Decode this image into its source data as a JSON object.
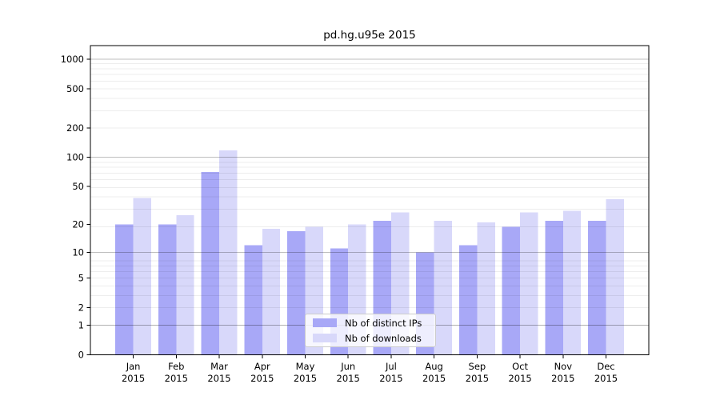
{
  "chart_data": {
    "type": "bar",
    "title": "pd.hg.u95e 2015",
    "categories": [
      "Jan 2015",
      "Feb 2015",
      "Mar 2015",
      "Apr 2015",
      "May 2015",
      "Jun 2015",
      "Jul 2015",
      "Aug 2015",
      "Sep 2015",
      "Oct 2015",
      "Nov 2015",
      "Dec 2015"
    ],
    "x_months": [
      "Jan",
      "Feb",
      "Mar",
      "Apr",
      "May",
      "Jun",
      "Jul",
      "Aug",
      "Sep",
      "Oct",
      "Nov",
      "Dec"
    ],
    "x_year": "2015",
    "series": [
      {
        "name": "Nb of distinct IPs",
        "color": "#a8a8f7",
        "values": [
          20,
          20,
          71,
          12,
          17,
          11,
          22,
          10,
          12,
          19,
          22,
          22
        ]
      },
      {
        "name": "Nb of downloads",
        "color": "#d8d8fa",
        "values": [
          38,
          25,
          118,
          18,
          19,
          20,
          27,
          22,
          21,
          27,
          28,
          37
        ]
      }
    ],
    "xlabel": "",
    "ylabel": "",
    "y_ticks": [
      0,
      1,
      2,
      5,
      10,
      20,
      50,
      100,
      200,
      500,
      1000
    ],
    "y_scale": "log10(1+value)",
    "ylim": [
      0,
      1373
    ],
    "grid": {
      "major_at": [
        1,
        10,
        100,
        1000
      ],
      "minor_per_decade": [
        2,
        3,
        4,
        5,
        6,
        7,
        8,
        9
      ],
      "on": true
    },
    "legend_position": "inside-bottom-center",
    "axis_color": "#000000"
  }
}
